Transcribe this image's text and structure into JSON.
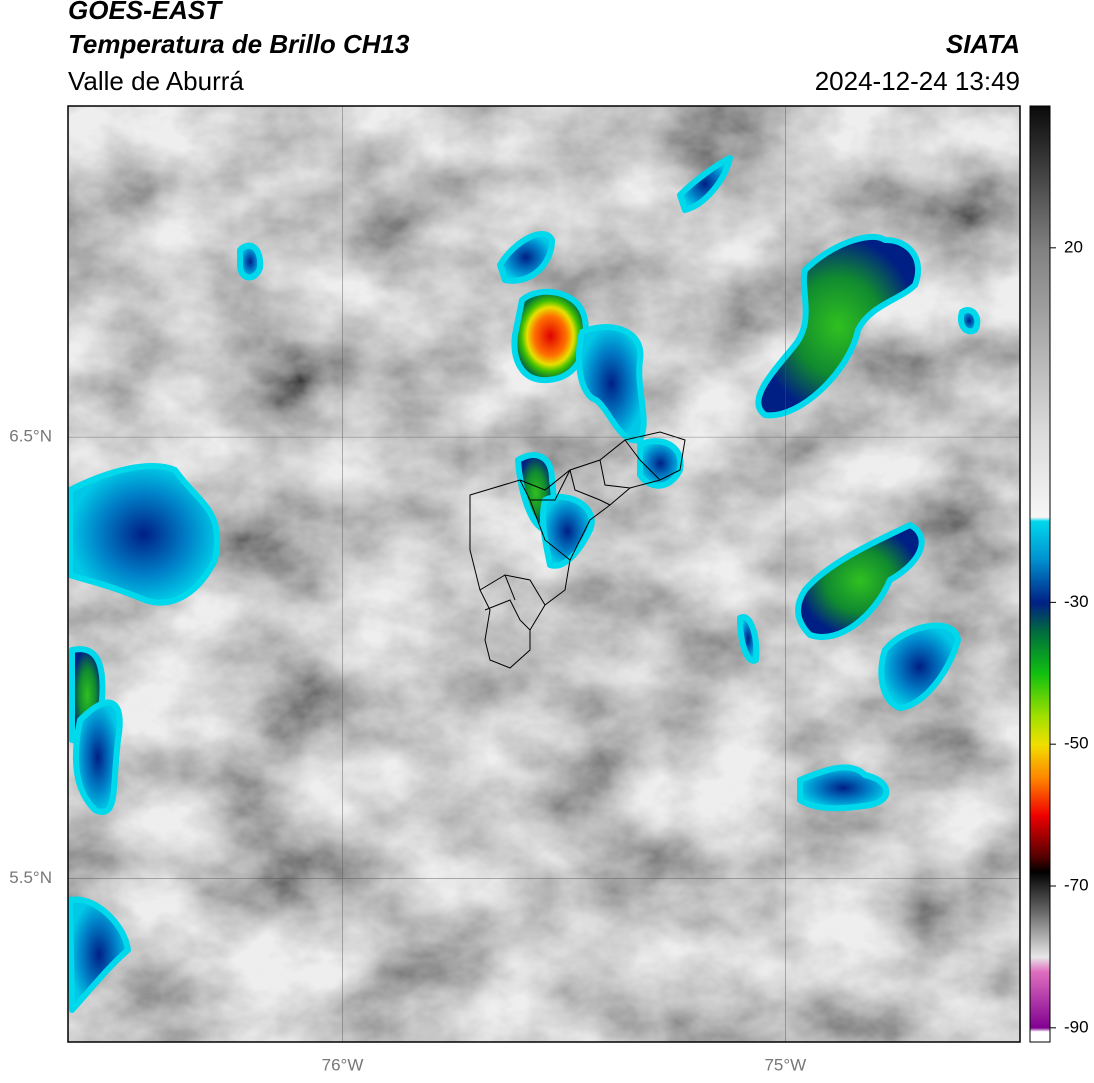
{
  "header": {
    "title": "GOES-EAST",
    "subtitle": "Temperatura de Brillo CH13",
    "region": "Valle de Aburrá",
    "source": "SIATA",
    "timestamp": "2024-12-24 13:49"
  },
  "map": {
    "xlim": [
      -76.62,
      -74.47
    ],
    "ylim": [
      5.13,
      7.25
    ],
    "xticks": [
      {
        "value": -76,
        "label": "76°W"
      },
      {
        "value": -75,
        "label": "75°W"
      }
    ],
    "yticks": [
      {
        "value": 6.5,
        "label": "6.5°N"
      },
      {
        "value": 5.5,
        "label": "5.5°N"
      }
    ],
    "grid": true
  },
  "colorbar": {
    "lim": [
      -92,
      40
    ],
    "ticks": [
      20,
      -30,
      -50,
      -70,
      -90
    ],
    "stops": [
      {
        "value": 40,
        "color": "#0a0a0a"
      },
      {
        "value": 20,
        "color": "#808080"
      },
      {
        "value": -5,
        "color": "#d8d8d8"
      },
      {
        "value": -18,
        "color": "#f6f6f6"
      },
      {
        "value": -18.5,
        "color": "#00d8ec"
      },
      {
        "value": -24,
        "color": "#0090d0"
      },
      {
        "value": -30,
        "color": "#001f85"
      },
      {
        "value": -34,
        "color": "#006a40"
      },
      {
        "value": -40,
        "color": "#10c010"
      },
      {
        "value": -46,
        "color": "#a0e000"
      },
      {
        "value": -50,
        "color": "#f0e000"
      },
      {
        "value": -55,
        "color": "#ff8000"
      },
      {
        "value": -60,
        "color": "#f00000"
      },
      {
        "value": -66,
        "color": "#500000"
      },
      {
        "value": -68,
        "color": "#000000"
      },
      {
        "value": -74,
        "color": "#707070"
      },
      {
        "value": -80,
        "color": "#e8e8e8"
      },
      {
        "value": -82,
        "color": "#e070c0"
      },
      {
        "value": -90,
        "color": "#800090"
      },
      {
        "value": -90.5,
        "color": "#ffffff"
      }
    ]
  }
}
